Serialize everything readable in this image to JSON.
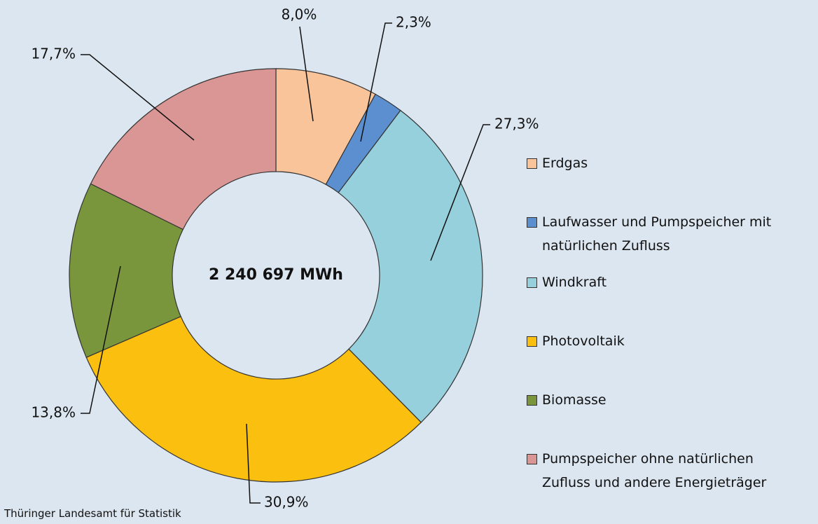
{
  "chart_data": {
    "type": "donut",
    "categories": [
      "Erdgas",
      "Laufwasser und Pumpspeicher mit natürlichen Zufluss",
      "Windkraft",
      "Photovoltaik",
      "Biomasse",
      "Pumpspeicher ohne natürlichen Zufluss und andere Energieträger"
    ],
    "values": [
      8.0,
      2.3,
      27.3,
      30.9,
      13.8,
      17.7
    ],
    "value_labels": [
      "8,0%",
      "2,3%",
      "27,3%",
      "30,9%",
      "13,8%",
      "17,7%"
    ],
    "colors": [
      "#f9c49a",
      "#5b8fd0",
      "#96d0dc",
      "#fbbf0f",
      "#7a963c",
      "#d99694"
    ],
    "center_label": "2 240 697 MWh",
    "source": "Thüringer Landesamt für Statistik"
  }
}
